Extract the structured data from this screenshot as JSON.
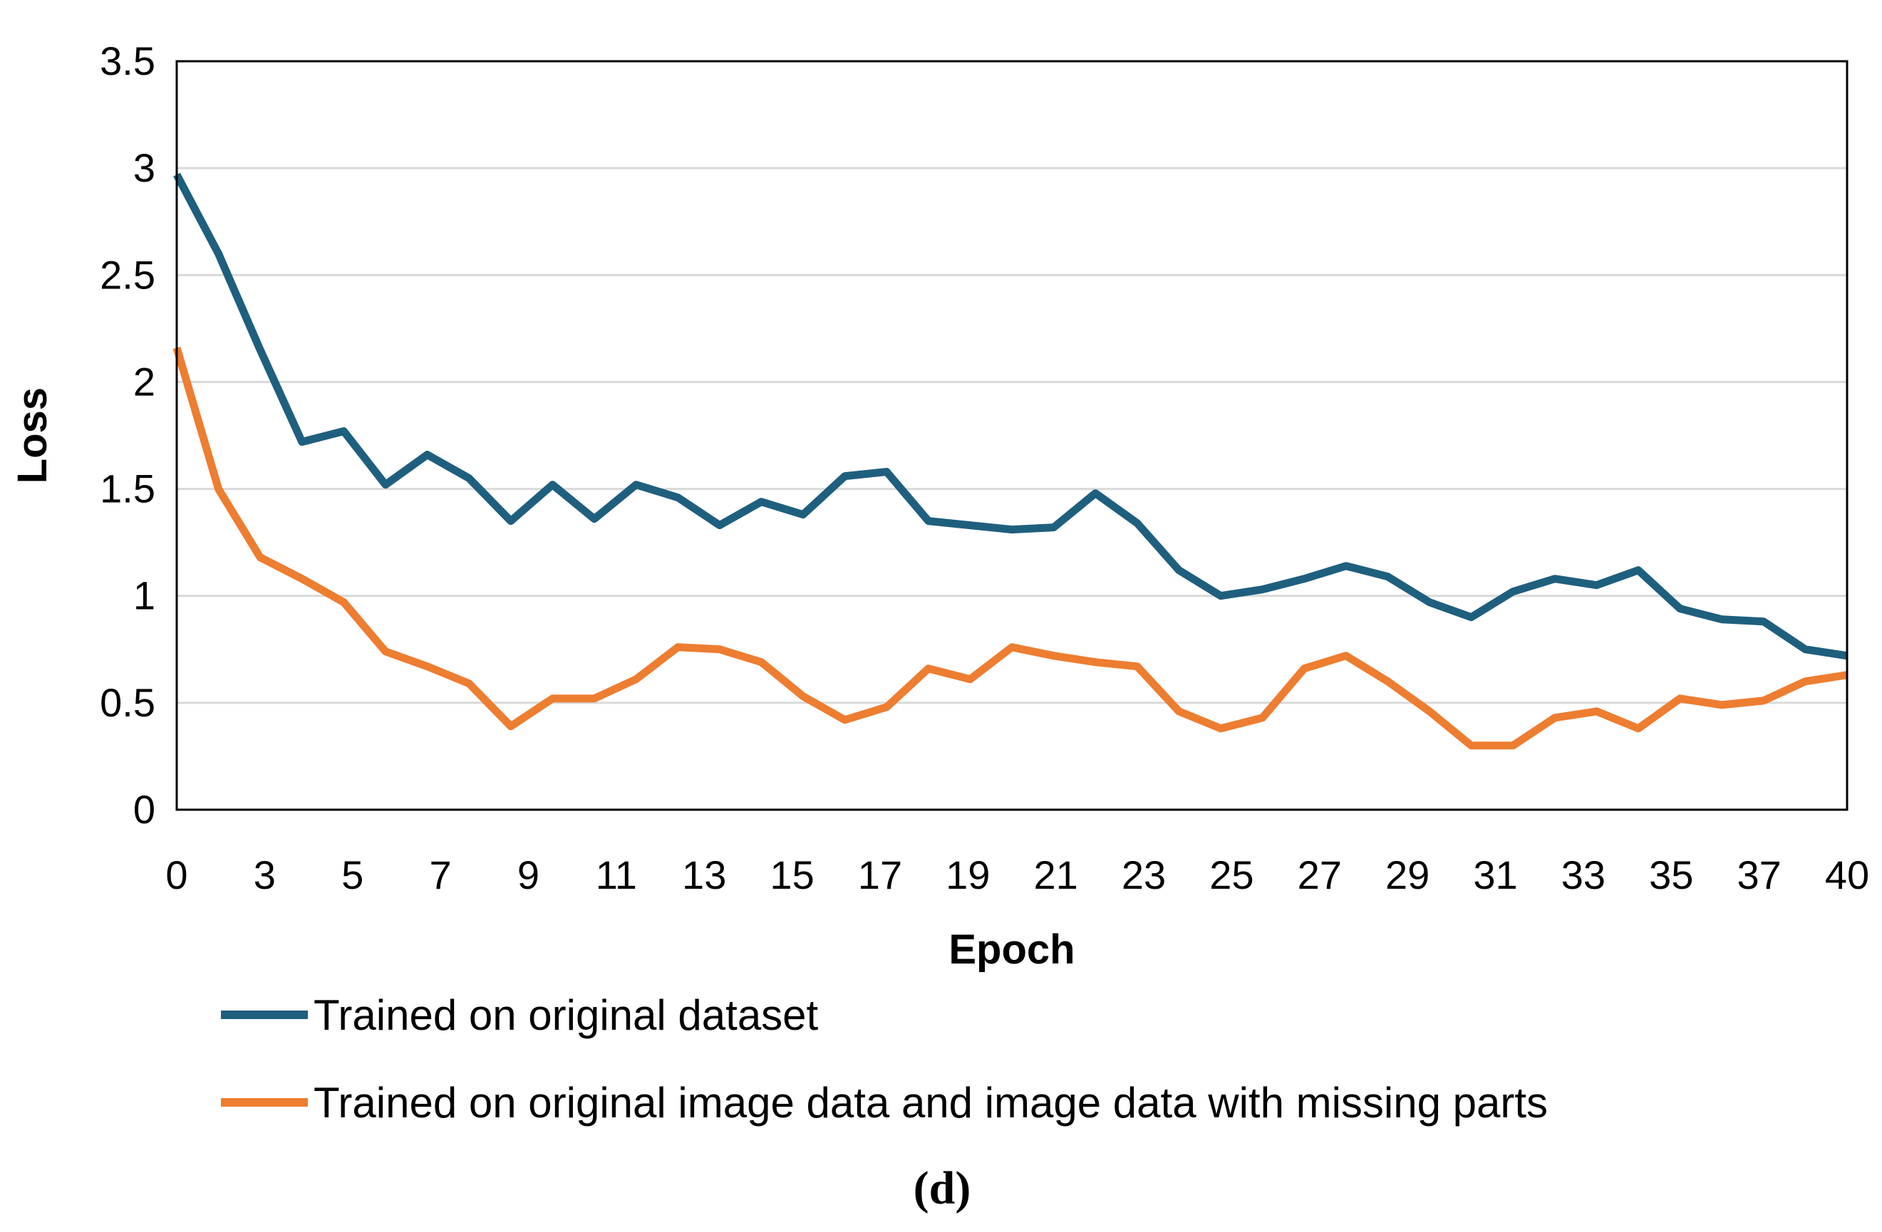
{
  "chart_data": {
    "type": "line",
    "title": "",
    "xlabel": "Epoch",
    "ylabel": "Loss",
    "caption": "(d)",
    "xlim": [
      0,
      40
    ],
    "ylim": [
      0,
      3.5
    ],
    "grid": true,
    "legend_position": "bottom",
    "x_tick_labels": [
      "0",
      "3",
      "5",
      "7",
      "9",
      "11",
      "13",
      "15",
      "17",
      "19",
      "21",
      "23",
      "25",
      "27",
      "29",
      "31",
      "33",
      "35",
      "37",
      "40"
    ],
    "y_ticks": [
      0,
      0.5,
      1,
      1.5,
      2,
      2.5,
      3,
      3.5
    ],
    "y_tick_labels": [
      "0",
      "0.5",
      "1",
      "1.5",
      "2",
      "2.5",
      "3",
      "3.5"
    ],
    "x": [
      0,
      1,
      2,
      3,
      4,
      5,
      6,
      7,
      8,
      9,
      10,
      11,
      12,
      13,
      14,
      15,
      16,
      17,
      18,
      19,
      20,
      21,
      22,
      23,
      24,
      25,
      26,
      27,
      28,
      29,
      30,
      31,
      32,
      33,
      34,
      35,
      36,
      37,
      38,
      39,
      40
    ],
    "series": [
      {
        "name": "Trained on original dataset",
        "color": "#1f5f7e",
        "values": [
          2.97,
          2.6,
          2.15,
          1.72,
          1.77,
          1.52,
          1.66,
          1.55,
          1.35,
          1.52,
          1.36,
          1.52,
          1.46,
          1.33,
          1.44,
          1.38,
          1.56,
          1.58,
          1.35,
          1.33,
          1.31,
          1.32,
          1.48,
          1.34,
          1.12,
          1.0,
          1.03,
          1.08,
          1.14,
          1.09,
          0.97,
          0.9,
          1.02,
          1.08,
          1.05,
          1.12,
          0.94,
          0.89,
          0.88,
          0.75,
          0.72
        ]
      },
      {
        "name": "Trained on original image data and image data with missing parts",
        "color": "#ed7d31",
        "values": [
          2.16,
          1.5,
          1.18,
          1.08,
          0.97,
          0.74,
          0.67,
          0.59,
          0.39,
          0.52,
          0.52,
          0.61,
          0.76,
          0.75,
          0.69,
          0.53,
          0.42,
          0.48,
          0.66,
          0.61,
          0.76,
          0.72,
          0.69,
          0.67,
          0.46,
          0.38,
          0.43,
          0.66,
          0.72,
          0.6,
          0.46,
          0.3,
          0.3,
          0.43,
          0.46,
          0.38,
          0.52,
          0.49,
          0.51,
          0.6,
          0.63
        ]
      }
    ]
  }
}
